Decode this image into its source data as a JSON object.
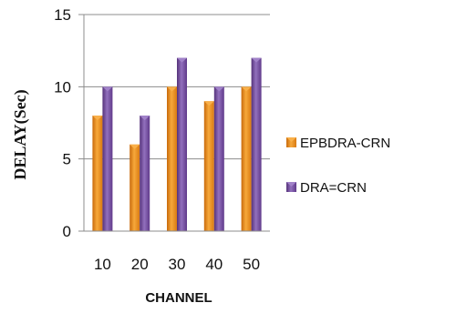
{
  "chart_data": {
    "type": "bar",
    "title": "",
    "xlabel": "CHANNEL",
    "ylabel": "DELAY(Sec)",
    "categories": [
      "10",
      "20",
      "30",
      "40",
      "50"
    ],
    "series": [
      {
        "name": "EPBDRA-CRN",
        "values": [
          8,
          6,
          10,
          9,
          10
        ]
      },
      {
        "name": "DRA=CRN",
        "values": [
          10,
          8,
          12,
          10,
          12
        ]
      }
    ],
    "ylim": [
      0,
      15
    ],
    "yticks": [
      0,
      5,
      10,
      15
    ],
    "grid": true,
    "legend_position": "right",
    "colors": {
      "EPBDRA-CRN": "#f0901c",
      "DRA=CRN": "#7a4ea6",
      "grid": "#8c8c8c"
    }
  }
}
